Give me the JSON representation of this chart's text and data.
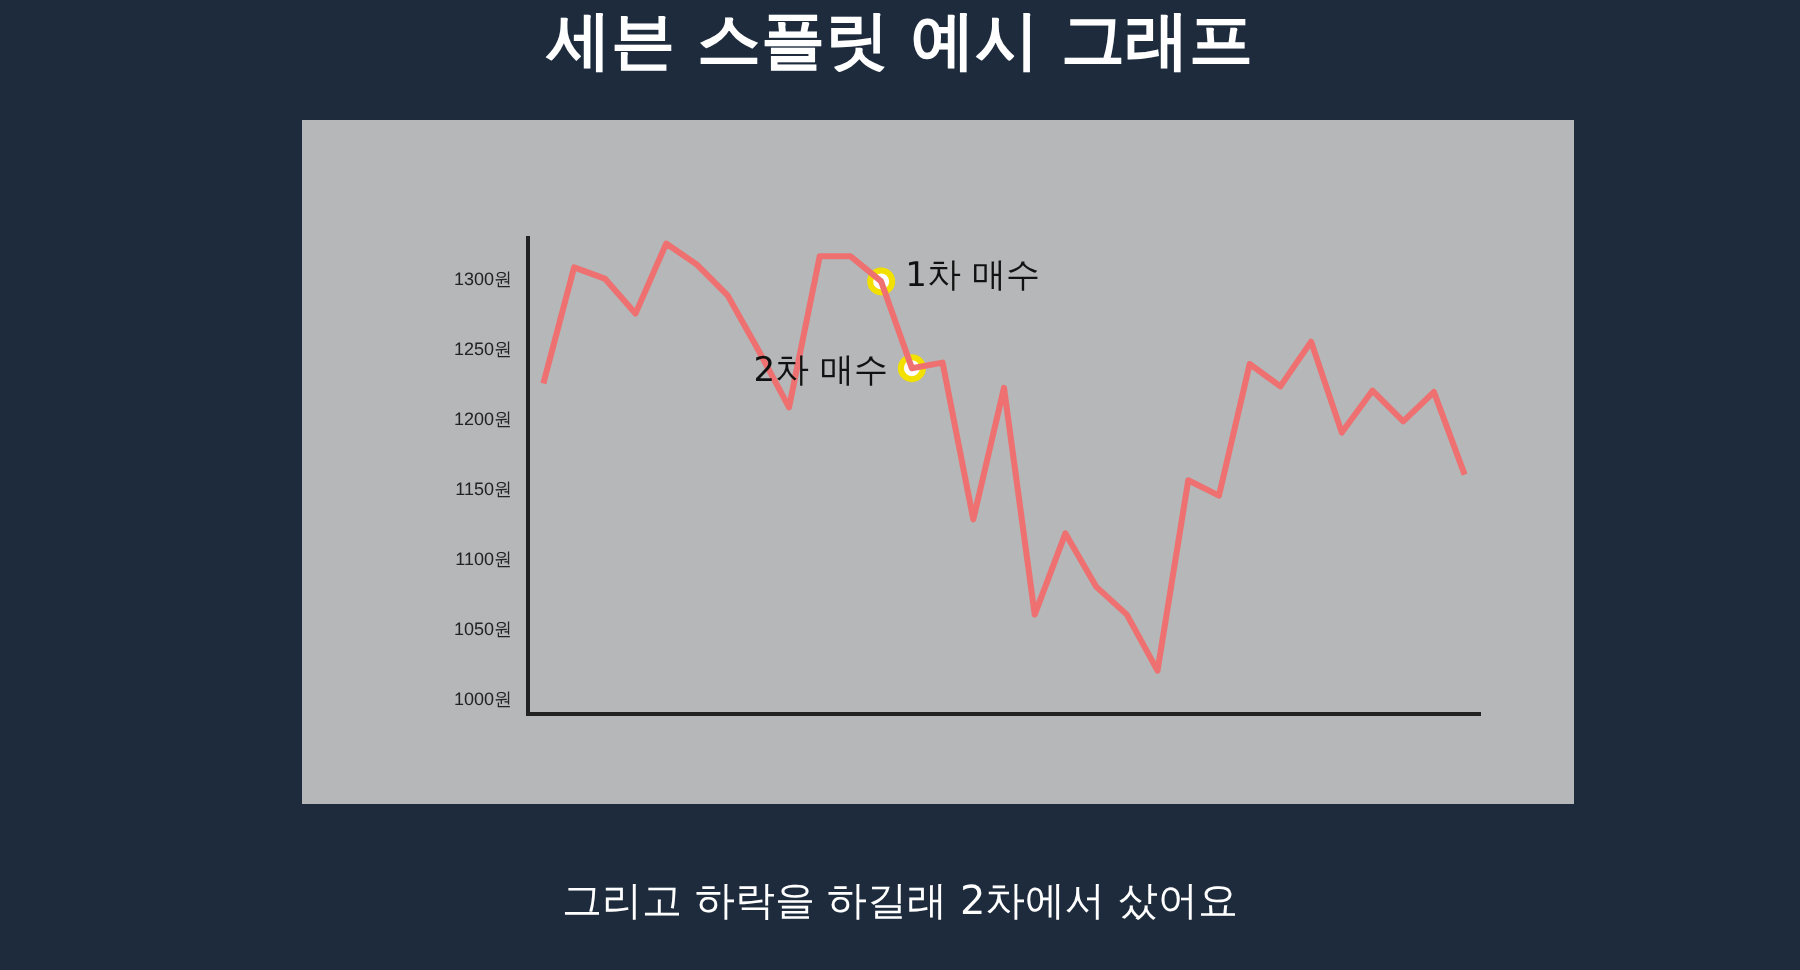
{
  "chart_data": {
    "type": "line",
    "title": "세븐 스플릿 예시 그래프",
    "categories": [
      null,
      null,
      null,
      null,
      null,
      null,
      null,
      null,
      null,
      null,
      null,
      null,
      null,
      null,
      null,
      null,
      null,
      null,
      null,
      null,
      null,
      null,
      null,
      null,
      null,
      null,
      null,
      null,
      null,
      null,
      null
    ],
    "series": [
      {
        "color": "#ee7070",
        "values": [
          1226,
          1309,
          1301,
          1276,
          1326,
          1311,
          1289,
          1250,
          1209,
          1317,
          1317,
          1299,
          1237,
          1241,
          1129,
          1223,
          1061,
          1119,
          1081,
          1061,
          1021,
          1157,
          1146,
          1240,
          1224,
          1256,
          1191,
          1221,
          1199,
          1220,
          1161
        ]
      },
      {
        "type": "scatter",
        "name": "1차 매수",
        "color": "#f2e000",
        "marker": "circle",
        "values": [
          null,
          null,
          null,
          null,
          null,
          null,
          null,
          null,
          null,
          null,
          null,
          1299,
          null,
          null,
          null,
          null,
          null,
          null,
          null,
          null,
          null,
          null,
          null,
          null,
          null,
          null,
          null,
          null,
          null,
          null,
          null
        ]
      },
      {
        "type": "scatter",
        "name": "2차 매수",
        "color": "#f2e000",
        "marker": "circle",
        "values": [
          null,
          null,
          null,
          null,
          null,
          null,
          null,
          null,
          null,
          null,
          null,
          null,
          1237,
          null,
          null,
          null,
          null,
          null,
          null,
          null,
          null,
          null,
          null,
          null,
          null,
          null,
          null,
          null,
          null,
          null,
          null
        ]
      }
    ],
    "ylim": [
      990,
      1330
    ],
    "yticks": [
      {
        "value": 1000,
        "label": "1000원"
      },
      {
        "value": 1050,
        "label": "1050원"
      },
      {
        "value": 1100,
        "label": "1100원"
      },
      {
        "value": 1150,
        "label": "1150원"
      },
      {
        "value": 1200,
        "label": "1200원"
      },
      {
        "value": 1250,
        "label": "1250원"
      },
      {
        "value": 1300,
        "label": "1300원"
      }
    ],
    "tick_labels": "y",
    "grid": false,
    "legend": false,
    "marker": "none",
    "line_style": "solid",
    "annotations": [
      "그리고 하락을 하길래 2차에서 샀어요"
    ]
  }
}
